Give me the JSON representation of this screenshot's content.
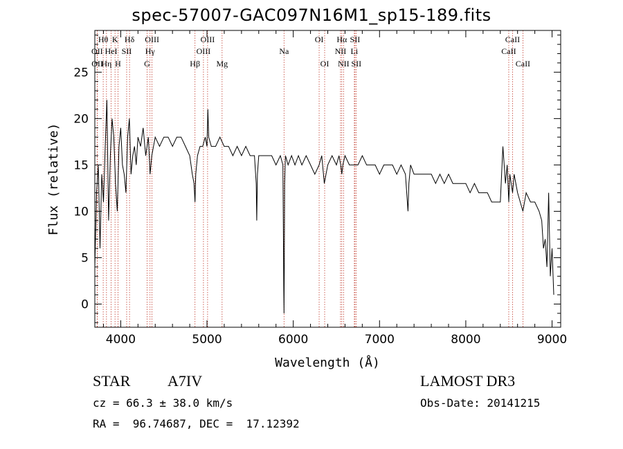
{
  "chart_data": {
    "type": "line",
    "title": "spec-57007-GAC097N16M1_sp15-189.fits",
    "xlabel": "Wavelength (Å)",
    "ylabel": "Flux (relative)",
    "xlim": [
      3700,
      9100
    ],
    "ylim": [
      -2.5,
      29.5
    ],
    "xticks": [
      4000,
      5000,
      6000,
      7000,
      8000,
      9000
    ],
    "yticks": [
      0,
      5,
      10,
      15,
      20,
      25
    ],
    "x_minor_step": 200,
    "y_minor_step": 1,
    "series": [
      {
        "name": "flux",
        "x": [
          3700,
          3720,
          3740,
          3760,
          3780,
          3800,
          3820,
          3840,
          3860,
          3880,
          3900,
          3920,
          3940,
          3960,
          3980,
          4000,
          4020,
          4040,
          4060,
          4080,
          4100,
          4120,
          4140,
          4160,
          4180,
          4200,
          4230,
          4260,
          4290,
          4320,
          4340,
          4360,
          4400,
          4450,
          4500,
          4550,
          4600,
          4650,
          4700,
          4750,
          4800,
          4830,
          4850,
          4861,
          4870,
          4890,
          4920,
          4950,
          4980,
          5000,
          5010,
          5020,
          5050,
          5100,
          5150,
          5200,
          5250,
          5300,
          5350,
          5400,
          5450,
          5500,
          5550,
          5570,
          5577,
          5585,
          5600,
          5650,
          5700,
          5750,
          5800,
          5850,
          5880,
          5890,
          5893,
          5896,
          5900,
          5910,
          5940,
          5980,
          6020,
          6060,
          6100,
          6150,
          6200,
          6250,
          6300,
          6330,
          6360,
          6400,
          6450,
          6500,
          6530,
          6550,
          6563,
          6575,
          6600,
          6650,
          6700,
          6750,
          6800,
          6850,
          6900,
          6950,
          7000,
          7050,
          7100,
          7150,
          7200,
          7250,
          7300,
          7330,
          7340,
          7360,
          7400,
          7450,
          7500,
          7550,
          7600,
          7650,
          7700,
          7750,
          7800,
          7850,
          7900,
          7950,
          8000,
          8050,
          8100,
          8150,
          8200,
          8250,
          8300,
          8350,
          8400,
          8430,
          8460,
          8480,
          8498,
          8510,
          8542,
          8560,
          8600,
          8662,
          8700,
          8750,
          8800,
          8850,
          8880,
          8900,
          8920,
          8940,
          8960,
          8980,
          9000,
          9020
        ],
        "y": [
          4,
          12,
          15,
          6,
          14,
          11,
          17,
          22,
          9,
          16,
          20,
          18,
          13,
          10,
          17,
          19,
          15,
          14,
          12,
          18,
          20,
          14,
          16,
          17,
          15,
          18,
          17,
          19,
          16,
          18,
          14,
          16,
          18,
          17,
          18,
          18,
          17,
          18,
          18,
          17,
          16,
          14,
          13,
          11,
          14,
          16,
          17,
          17,
          18,
          17,
          21,
          18,
          17,
          17,
          18,
          17,
          17,
          16,
          17,
          16,
          17,
          16,
          16,
          13,
          9,
          14,
          16,
          16,
          16,
          16,
          15,
          16,
          15,
          2,
          -1,
          4,
          13,
          16,
          15,
          16,
          15,
          16,
          15,
          16,
          15,
          14,
          15,
          16,
          13,
          15,
          16,
          15,
          16,
          15,
          14,
          15,
          16,
          15,
          15,
          15,
          16,
          15,
          15,
          15,
          14,
          15,
          15,
          15,
          14,
          15,
          14,
          10,
          13,
          15,
          14,
          14,
          14,
          14,
          14,
          13,
          14,
          13,
          14,
          13,
          13,
          13,
          13,
          12,
          13,
          12,
          12,
          12,
          11,
          11,
          11,
          17,
          13,
          15,
          11,
          14,
          12,
          14,
          12,
          10,
          12,
          11,
          11,
          10,
          9,
          6,
          7,
          4,
          12,
          3,
          6,
          1
        ],
        "color": "#000000"
      }
    ],
    "lines": [
      {
        "name": "Hθ",
        "x": 3797,
        "row": 0
      },
      {
        "name": "OII",
        "x": 3727,
        "row": 1
      },
      {
        "name": "OII",
        "x": 3729,
        "row": 2
      },
      {
        "name": "Hη",
        "x": 3835,
        "row": 2
      },
      {
        "name": "HeI",
        "x": 3889,
        "row": 1
      },
      {
        "name": "K",
        "x": 3934,
        "row": 0
      },
      {
        "name": "H",
        "x": 3968,
        "row": 2
      },
      {
        "name": "SII",
        "x": 4069,
        "row": 1
      },
      {
        "name": "Hδ",
        "x": 4102,
        "row": 0
      },
      {
        "name": "OIII",
        "x": 4363,
        "row": 0
      },
      {
        "name": "Hγ",
        "x": 4340,
        "row": 1
      },
      {
        "name": "G",
        "x": 4305,
        "row": 2
      },
      {
        "name": "Hβ",
        "x": 4861,
        "row": 2
      },
      {
        "name": "OIII",
        "x": 5007,
        "row": 0
      },
      {
        "name": "OIII",
        "x": 4959,
        "row": 1
      },
      {
        "name": "Mg",
        "x": 5175,
        "row": 2
      },
      {
        "name": "Na",
        "x": 5893,
        "row": 1
      },
      {
        "name": "OI",
        "x": 6300,
        "row": 0
      },
      {
        "name": "OI",
        "x": 6364,
        "row": 2
      },
      {
        "name": "Hα",
        "x": 6563,
        "row": 0
      },
      {
        "name": "SII",
        "x": 6716,
        "row": 0
      },
      {
        "name": "NII",
        "x": 6548,
        "row": 1
      },
      {
        "name": "NII",
        "x": 6583,
        "row": 2
      },
      {
        "name": "Li",
        "x": 6708,
        "row": 1
      },
      {
        "name": "SII",
        "x": 6731,
        "row": 2
      },
      {
        "name": "CaII",
        "x": 8542,
        "row": 0
      },
      {
        "name": "CaII",
        "x": 8498,
        "row": 1
      },
      {
        "name": "CaII",
        "x": 8662,
        "row": 2
      }
    ]
  },
  "info": {
    "object_class": "STAR",
    "subclass": "A7IV",
    "survey": "LAMOST DR3",
    "cz": "cz = 66.3 ± 38.0 km/s",
    "obs_date": "Obs-Date: 20141215",
    "coords": "RA =  96.74687, DEC =  17.12392"
  }
}
